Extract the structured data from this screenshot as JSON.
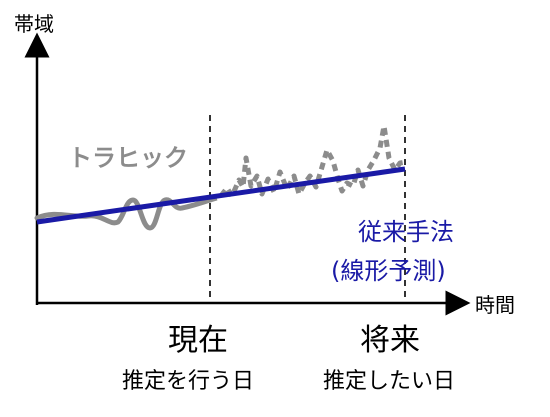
{
  "y_axis_label": "帯域",
  "x_axis_label": "時間",
  "traffic_label": "トラヒック",
  "method_label_1": "従来手法",
  "method_label_2": "(線形予測)",
  "now_label": "現在",
  "now_sub": "推定を行う日",
  "future_label": "将来",
  "future_sub": "推定したい日",
  "colors": {
    "axis": "#000000",
    "traffic": "#8c8c8c",
    "trend": "#1a1aa6"
  }
}
